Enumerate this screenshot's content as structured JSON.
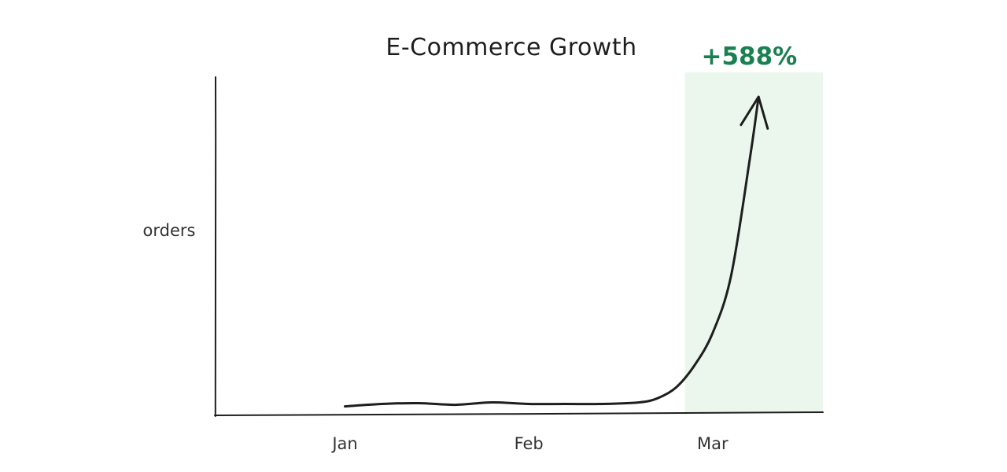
{
  "colors": {
    "ink": "#1e1e1e",
    "label": "#333333",
    "accent": "#19804f",
    "highlight": "#ebf7ec"
  },
  "chart_data": {
    "type": "line",
    "title": "E-Commerce Growth",
    "ylabel": "orders",
    "xlabel": "",
    "categories": [
      "Jan",
      "Feb",
      "Mar"
    ],
    "x": [
      0,
      0.2,
      0.4,
      0.6,
      0.8,
      1.0,
      1.2,
      1.4,
      1.6,
      1.7,
      1.8,
      1.9,
      2.0,
      2.1,
      2.2,
      2.25
    ],
    "values": [
      10,
      13,
      14,
      12,
      15,
      13,
      13,
      13,
      15,
      20,
      33,
      60,
      100,
      170,
      310,
      390
    ],
    "ylim": [
      0,
      420
    ],
    "xlim": [
      -0.7,
      2.6
    ],
    "highlight": {
      "from": 1.85,
      "to": 2.6,
      "label": "+588%"
    },
    "arrow_at_end": true,
    "grid": false
  }
}
